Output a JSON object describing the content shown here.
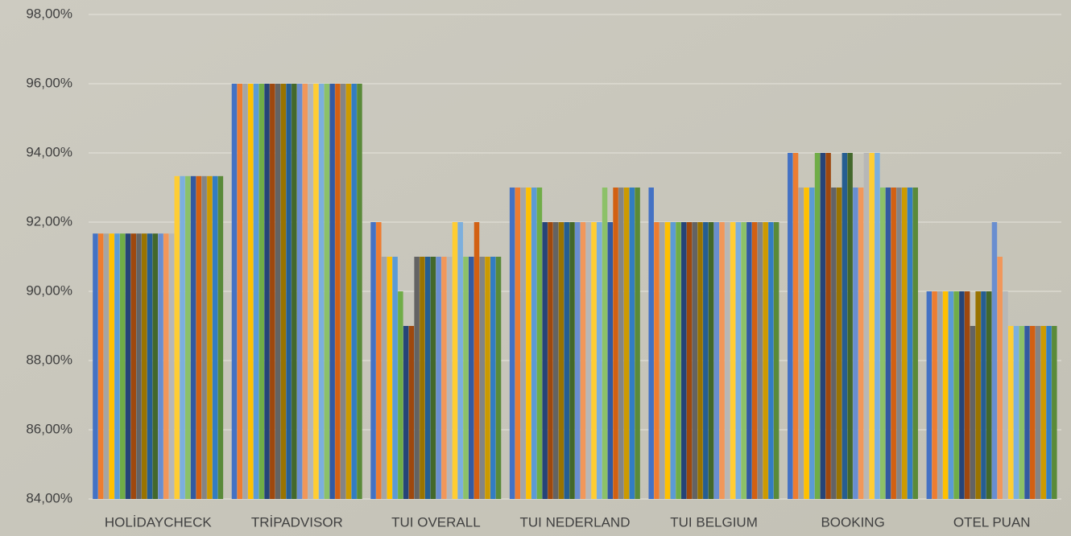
{
  "chart_data": {
    "type": "bar",
    "categories": [
      "HOLİDAYCHECK",
      "TRİPADVISOR",
      "TUI OVERALL",
      "TUI NEDERLAND",
      "TUI BELGIUM",
      "BOOKING",
      "OTEL PUAN"
    ],
    "series": [
      {
        "color": "#4472c4",
        "values": [
          91.67,
          96,
          92,
          93,
          93,
          94,
          90
        ]
      },
      {
        "color": "#ed7d31",
        "values": [
          91.67,
          96,
          92,
          93,
          92,
          94,
          90
        ]
      },
      {
        "color": "#a5a5a5",
        "values": [
          91.67,
          96,
          91,
          93,
          92,
          93,
          90
        ]
      },
      {
        "color": "#ffc000",
        "values": [
          91.67,
          96,
          91,
          93,
          92,
          93,
          90
        ]
      },
      {
        "color": "#5b9bd5",
        "values": [
          91.67,
          96,
          91,
          93,
          92,
          93,
          90
        ]
      },
      {
        "color": "#70ad47",
        "values": [
          91.67,
          96,
          90,
          93,
          92,
          94,
          90
        ]
      },
      {
        "color": "#264478",
        "values": [
          91.67,
          96,
          89,
          92,
          92,
          94,
          90
        ]
      },
      {
        "color": "#9e480e",
        "values": [
          91.67,
          96,
          89,
          92,
          92,
          94,
          90
        ]
      },
      {
        "color": "#636363",
        "values": [
          91.67,
          96,
          91,
          92,
          92,
          93,
          89
        ]
      },
      {
        "color": "#997300",
        "values": [
          91.67,
          96,
          91,
          92,
          92,
          93,
          90
        ]
      },
      {
        "color": "#255e91",
        "values": [
          91.67,
          96,
          91,
          92,
          92,
          94,
          90
        ]
      },
      {
        "color": "#43682b",
        "values": [
          91.67,
          96,
          91,
          92,
          92,
          94,
          90
        ]
      },
      {
        "color": "#698ed0",
        "values": [
          91.67,
          96,
          91,
          92,
          92,
          93,
          92
        ]
      },
      {
        "color": "#f1975a",
        "values": [
          91.67,
          96,
          91,
          92,
          92,
          93,
          91
        ]
      },
      {
        "color": "#b7b7b7",
        "values": [
          91.67,
          96,
          91,
          92,
          92,
          94,
          90
        ]
      },
      {
        "color": "#ffcd33",
        "values": [
          93.33,
          96,
          92,
          92,
          92,
          94,
          89
        ]
      },
      {
        "color": "#7cafdd",
        "values": [
          93.33,
          96,
          92,
          92,
          92,
          94,
          89
        ]
      },
      {
        "color": "#8cc168",
        "values": [
          93.33,
          96,
          91,
          93,
          92,
          93,
          89
        ]
      },
      {
        "color": "#335aa1",
        "values": [
          93.33,
          96,
          91,
          92,
          92,
          93,
          89
        ]
      },
      {
        "color": "#d26012",
        "values": [
          93.33,
          96,
          92,
          93,
          92,
          93,
          89
        ]
      },
      {
        "color": "#848484",
        "values": [
          93.33,
          96,
          91,
          93,
          92,
          93,
          89
        ]
      },
      {
        "color": "#cc9a00",
        "values": [
          93.33,
          96,
          91,
          93,
          92,
          93,
          89
        ]
      },
      {
        "color": "#327dc2",
        "values": [
          93.33,
          96,
          91,
          93,
          92,
          93,
          89
        ]
      },
      {
        "color": "#5a8a39",
        "values": [
          93.33,
          96,
          91,
          93,
          92,
          93,
          89
        ]
      }
    ],
    "ylim": [
      84,
      98
    ],
    "yticks": [
      {
        "value": 84,
        "label": "84,00%"
      },
      {
        "value": 86,
        "label": "86,00%"
      },
      {
        "value": 88,
        "label": "88,00%"
      },
      {
        "value": 90,
        "label": "90,00%"
      },
      {
        "value": 92,
        "label": "92,00%"
      },
      {
        "value": 94,
        "label": "94,00%"
      },
      {
        "value": 96,
        "label": "96,00%"
      },
      {
        "value": 98,
        "label": "98,00%"
      }
    ],
    "grid": true
  }
}
